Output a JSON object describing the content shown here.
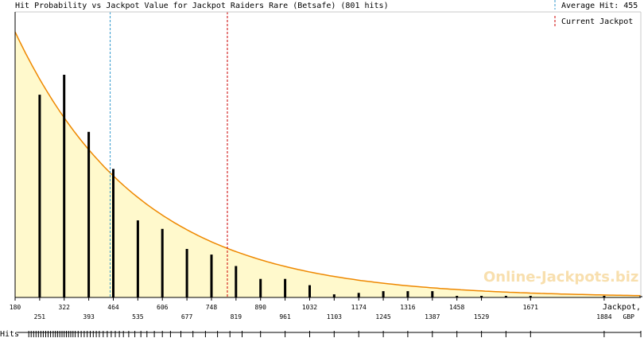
{
  "chart_data": {
    "type": "bar",
    "title": "Hit Probability vs Jackpot Value for Jackpot Raiders Rare (Betsafe) (801 hits)",
    "xlabel": "Jackpot,",
    "xunit": "GBP",
    "hits_label": "Hits",
    "watermark": "Online-Jackpots.biz",
    "xlim": [
      180,
      1990
    ],
    "ylim": [
      0,
      1
    ],
    "x_ticks_upper": [
      180,
      322,
      464,
      606,
      748,
      890,
      1032,
      1174,
      1316,
      1458,
      1671
    ],
    "x_ticks_lower": [
      251,
      393,
      535,
      677,
      819,
      961,
      1103,
      1245,
      1387,
      1529,
      1884
    ],
    "bars": [
      {
        "x": 251,
        "y": 0.71
      },
      {
        "x": 322,
        "y": 0.78
      },
      {
        "x": 393,
        "y": 0.58
      },
      {
        "x": 464,
        "y": 0.45
      },
      {
        "x": 535,
        "y": 0.27
      },
      {
        "x": 606,
        "y": 0.24
      },
      {
        "x": 677,
        "y": 0.17
      },
      {
        "x": 748,
        "y": 0.15
      },
      {
        "x": 819,
        "y": 0.11
      },
      {
        "x": 890,
        "y": 0.065
      },
      {
        "x": 961,
        "y": 0.065
      },
      {
        "x": 1032,
        "y": 0.043
      },
      {
        "x": 1103,
        "y": 0.011
      },
      {
        "x": 1174,
        "y": 0.016
      },
      {
        "x": 1245,
        "y": 0.022
      },
      {
        "x": 1316,
        "y": 0.022
      },
      {
        "x": 1387,
        "y": 0.022
      },
      {
        "x": 1458,
        "y": 0.005
      },
      {
        "x": 1529,
        "y": 0.005
      },
      {
        "x": 1600,
        "y": 0.005
      },
      {
        "x": 1671,
        "y": 0.005
      },
      {
        "x": 1884,
        "y": 0.005
      },
      {
        "x": 1990,
        "y": 0.005
      }
    ],
    "curve": {
      "y0": 0.93,
      "decay": 0.00275
    },
    "average_hit": {
      "value": 455,
      "label": "Average Hit: 455",
      "color": "#3399cc"
    },
    "current_jackpot": {
      "value": 794,
      "label": "Current Jackpot",
      "color": "#cc0000"
    },
    "colors": {
      "bar": "#000000",
      "curve": "#ee8800",
      "fill": "#fff9cc",
      "axis": "#000000"
    }
  }
}
